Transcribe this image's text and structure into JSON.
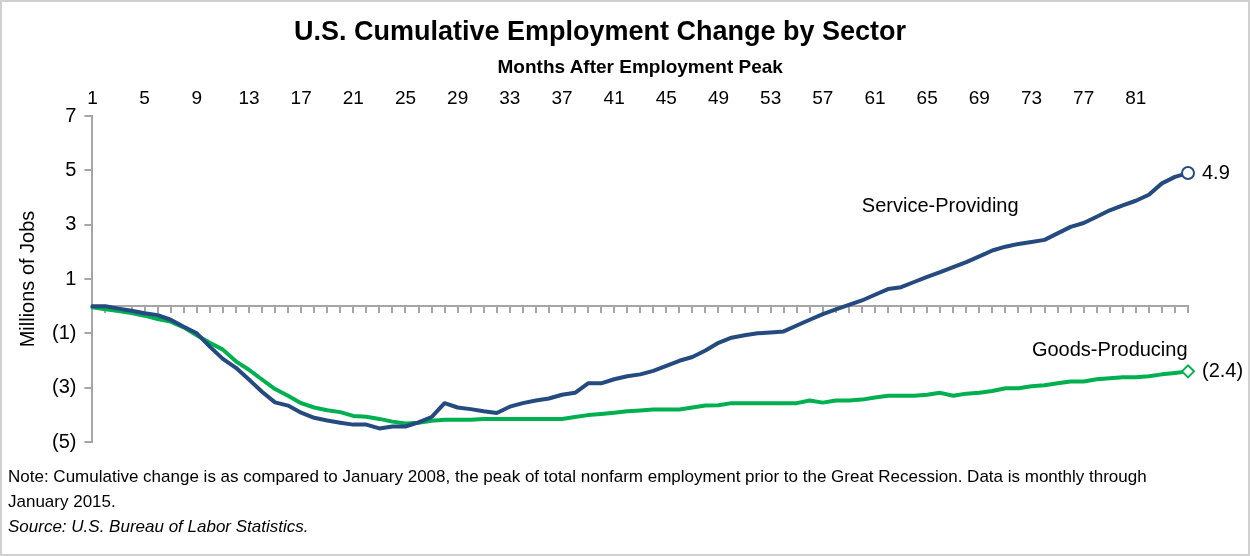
{
  "chart_data": {
    "type": "line",
    "title": "U.S. Cumulative Employment Change by Sector",
    "xlabel": "Months After Employment Peak",
    "ylabel": "Millions of Jobs",
    "categories": [
      "1",
      null,
      null,
      null,
      "5",
      null,
      null,
      null,
      "9",
      null,
      null,
      null,
      "13",
      null,
      null,
      null,
      "17",
      null,
      null,
      null,
      "21",
      null,
      null,
      null,
      "25",
      null,
      null,
      null,
      "29",
      null,
      null,
      null,
      "33",
      null,
      null,
      null,
      "37",
      null,
      null,
      null,
      "41",
      null,
      null,
      null,
      "45",
      null,
      null,
      null,
      "49",
      null,
      null,
      null,
      "53",
      null,
      null,
      null,
      "57",
      null,
      null,
      null,
      "61",
      null,
      null,
      null,
      "65",
      null,
      null,
      null,
      "69",
      null,
      null,
      null,
      "73",
      null,
      null,
      null,
      "77",
      null,
      null,
      null,
      "81",
      null,
      null,
      null,
      null
    ],
    "series": [
      {
        "name": "Service-Providing",
        "color": "#254a7f",
        "values": [
          0,
          0,
          -0.09,
          -0.17,
          -0.26,
          -0.33,
          -0.5,
          -0.76,
          -1,
          -1.49,
          -1.94,
          -2.27,
          -2.7,
          -3.15,
          -3.54,
          -3.66,
          -3.92,
          -4.11,
          -4.21,
          -4.29,
          -4.36,
          -4.36,
          -4.5,
          -4.43,
          -4.43,
          -4.28,
          -4.08,
          -3.57,
          -3.73,
          -3.79,
          -3.87,
          -3.93,
          -3.7,
          -3.57,
          -3.47,
          -3.4,
          -3.26,
          -3.19,
          -2.84,
          -2.84,
          -2.69,
          -2.58,
          -2.51,
          -2.38,
          -2.2,
          -2.01,
          -1.87,
          -1.63,
          -1.35,
          -1.16,
          -1.07,
          -1,
          -0.97,
          -0.93,
          -0.71,
          -0.5,
          -0.29,
          -0.12,
          0.05,
          0.21,
          0.42,
          0.63,
          0.7,
          0.89,
          1.08,
          1.25,
          1.44,
          1.62,
          1.83,
          2.05,
          2.19,
          2.29,
          2.36,
          2.44,
          2.68,
          2.92,
          3.06,
          3.29,
          3.53,
          3.71,
          3.88,
          4.1,
          4.52,
          4.76,
          4.9
        ],
        "value_labels": [
          null,
          null,
          null,
          null,
          null,
          null,
          null,
          null,
          null,
          null,
          null,
          null,
          null,
          null,
          null,
          null,
          null,
          null,
          null,
          null,
          null,
          null,
          null,
          null,
          null,
          null,
          null,
          null,
          null,
          null,
          null,
          null,
          null,
          null,
          null,
          null,
          null,
          null,
          null,
          null,
          null,
          null,
          null,
          null,
          null,
          null,
          null,
          null,
          null,
          null,
          null,
          null,
          null,
          null,
          null,
          null,
          null,
          null,
          null,
          null,
          null,
          null,
          null,
          null,
          null,
          null,
          null,
          null,
          null,
          null,
          null,
          null,
          null,
          null,
          null,
          null,
          null,
          null,
          null,
          null,
          null,
          null,
          null,
          null,
          "4.9"
        ]
      },
      {
        "name": "Goods-Producing",
        "color": "#00b050",
        "values": [
          -0.04,
          -0.11,
          -0.18,
          -0.25,
          -0.35,
          -0.47,
          -0.57,
          -0.78,
          -1.07,
          -1.35,
          -1.6,
          -2.03,
          -2.34,
          -2.7,
          -3.05,
          -3.3,
          -3.57,
          -3.73,
          -3.83,
          -3.9,
          -4.04,
          -4.07,
          -4.15,
          -4.25,
          -4.32,
          -4.29,
          -4.22,
          -4.18,
          -4.18,
          -4.18,
          -4.15,
          -4.15,
          -4.15,
          -4.15,
          -4.15,
          -4.15,
          -4.15,
          -4.08,
          -4.01,
          -3.97,
          -3.92,
          -3.87,
          -3.84,
          -3.8,
          -3.8,
          -3.8,
          -3.73,
          -3.66,
          -3.65,
          -3.57,
          -3.57,
          -3.57,
          -3.57,
          -3.57,
          -3.57,
          -3.47,
          -3.55,
          -3.47,
          -3.47,
          -3.44,
          -3.36,
          -3.3,
          -3.3,
          -3.3,
          -3.26,
          -3.19,
          -3.3,
          -3.22,
          -3.19,
          -3.12,
          -3.02,
          -3.02,
          -2.95,
          -2.91,
          -2.84,
          -2.77,
          -2.77,
          -2.69,
          -2.65,
          -2.62,
          -2.62,
          -2.58,
          -2.51,
          -2.46,
          -2.4
        ],
        "value_labels": [
          null,
          null,
          null,
          null,
          null,
          null,
          null,
          null,
          null,
          null,
          null,
          null,
          null,
          null,
          null,
          null,
          null,
          null,
          null,
          null,
          null,
          null,
          null,
          null,
          null,
          null,
          null,
          null,
          null,
          null,
          null,
          null,
          null,
          null,
          null,
          null,
          null,
          null,
          null,
          null,
          null,
          null,
          null,
          null,
          null,
          null,
          null,
          null,
          null,
          null,
          null,
          null,
          null,
          null,
          null,
          null,
          null,
          null,
          null,
          null,
          null,
          null,
          null,
          null,
          null,
          null,
          null,
          null,
          null,
          null,
          null,
          null,
          null,
          null,
          null,
          null,
          null,
          null,
          null,
          null,
          null,
          null,
          null,
          null,
          "(2.4)"
        ]
      }
    ],
    "ylim": [
      -5,
      7
    ],
    "yticks": [
      7,
      5,
      3,
      1,
      {
        "value": -1,
        "label": "(1)"
      },
      {
        "value": -3,
        "label": "(3)"
      },
      {
        "value": -5,
        "label": "(5)"
      }
    ],
    "grid": false,
    "legend": false,
    "annotations": [
      "Note: Cumulative change is as compared to January 2008, the peak of total nonfarm employment prior to the Great Recession. Data is monthly through January 2015.",
      "Source:  U.S. Bureau of Labor Statistics."
    ]
  }
}
